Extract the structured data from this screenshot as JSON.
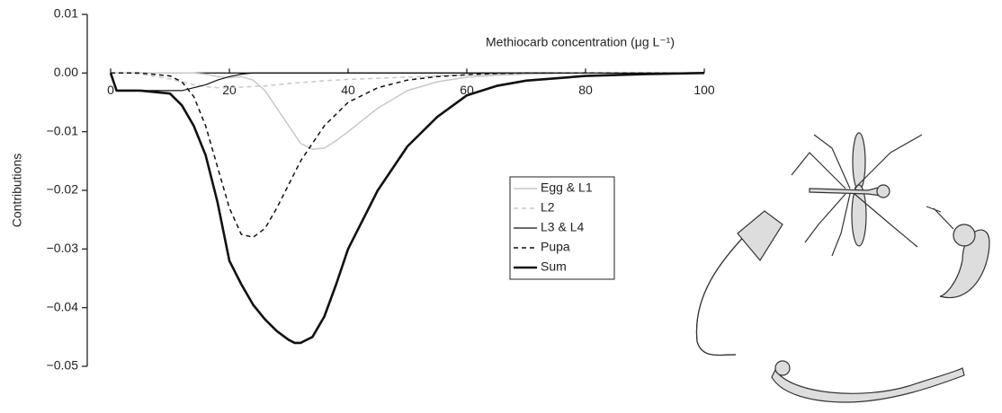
{
  "chart_data": {
    "type": "line",
    "x_label": "Methiocarb concentration (μg L⁻¹)",
    "y_label": "Contributions",
    "x": [
      0,
      1,
      2,
      5,
      10,
      12,
      14,
      16,
      18,
      20,
      22,
      24,
      26,
      28,
      30,
      31,
      32,
      34,
      36,
      38,
      40,
      45,
      50,
      55,
      60,
      65,
      70,
      80,
      90,
      100
    ],
    "series": [
      {
        "name": "Egg & L1",
        "color": "#c8c8c8",
        "linestyle": "solid",
        "linewidth": 1.5,
        "values": [
          0,
          0,
          0,
          0,
          0,
          0,
          0,
          -0.0002,
          -0.0006,
          -0.0008,
          -0.0006,
          -0.0012,
          -0.003,
          -0.006,
          -0.009,
          -0.0105,
          -0.012,
          -0.013,
          -0.0128,
          -0.0115,
          -0.01,
          -0.006,
          -0.003,
          -0.0015,
          -0.0007,
          -0.0004,
          -0.0002,
          0,
          0,
          0
        ]
      },
      {
        "name": "L2",
        "color": "#c8c8c8",
        "linestyle": "dashed",
        "linewidth": 1.5,
        "values": [
          0,
          0,
          0,
          -0.0002,
          -0.001,
          -0.0015,
          -0.002,
          -0.0023,
          -0.0025,
          -0.0025,
          -0.0024,
          -0.0023,
          -0.0022,
          -0.002,
          -0.0018,
          -0.0017,
          -0.0016,
          -0.0015,
          -0.0013,
          -0.0012,
          -0.0011,
          -0.0009,
          -0.0007,
          -0.0005,
          -0.0003,
          -0.0002,
          -0.0001,
          0,
          0,
          0
        ]
      },
      {
        "name": "L3 & L4",
        "color": "#111111",
        "linestyle": "solid",
        "linewidth": 1.2,
        "values": [
          0,
          -0.003,
          -0.003,
          -0.003,
          -0.003,
          -0.003,
          -0.0025,
          -0.002,
          -0.0012,
          -0.0006,
          -0.0002,
          0,
          0,
          0,
          0,
          0,
          0,
          0,
          0,
          0,
          0,
          0,
          0,
          0,
          0,
          0,
          0,
          0,
          0,
          0
        ]
      },
      {
        "name": "Pupa",
        "color": "#111111",
        "linestyle": "dashed",
        "linewidth": 1.5,
        "values": [
          0,
          0,
          0,
          0,
          -0.0005,
          -0.0015,
          -0.004,
          -0.009,
          -0.016,
          -0.023,
          -0.0275,
          -0.028,
          -0.0265,
          -0.023,
          -0.019,
          -0.017,
          -0.015,
          -0.012,
          -0.009,
          -0.007,
          -0.005,
          -0.0025,
          -0.0012,
          -0.0006,
          -0.0003,
          -0.0001,
          0,
          0,
          0,
          0
        ]
      },
      {
        "name": "Sum",
        "color": "#111111",
        "linestyle": "solid",
        "linewidth": 2.6,
        "values": [
          0,
          -0.003,
          -0.003,
          -0.003,
          -0.0035,
          -0.0055,
          -0.009,
          -0.014,
          -0.022,
          -0.032,
          -0.036,
          -0.0395,
          -0.042,
          -0.044,
          -0.0455,
          -0.046,
          -0.046,
          -0.045,
          -0.0415,
          -0.036,
          -0.03,
          -0.02,
          -0.0125,
          -0.0075,
          -0.0038,
          -0.0022,
          -0.0013,
          -0.0005,
          -0.0002,
          0
        ]
      }
    ],
    "xlim": [
      0,
      100
    ],
    "xticks": [
      0,
      20,
      40,
      60,
      80,
      100
    ],
    "ylim": [
      -0.05,
      0.01
    ],
    "yticks": [
      {
        "value": -0.05,
        "label": "−0.05"
      },
      {
        "value": -0.04,
        "label": "−0.04"
      },
      {
        "value": -0.03,
        "label": "−0.03"
      },
      {
        "value": -0.02,
        "label": "−0.02"
      },
      {
        "value": -0.01,
        "label": "−0.01"
      },
      {
        "value": 0,
        "label": "0.00"
      },
      0.01
    ],
    "legend": "center-right"
  }
}
